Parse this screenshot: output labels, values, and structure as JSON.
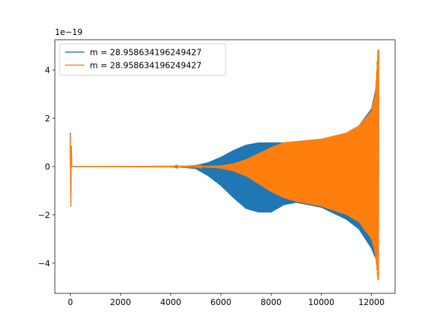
{
  "chart_data": {
    "type": "line",
    "title": "",
    "xlabel": "",
    "ylabel": "",
    "y_offset_label": "1e−19",
    "xlim": [
      -616,
      12941
    ],
    "ylim": [
      -5.25,
      5.25
    ],
    "x_ticks": [
      0,
      2000,
      4000,
      6000,
      8000,
      10000,
      12000
    ],
    "x_tick_labels": [
      "0",
      "2000",
      "4000",
      "6000",
      "8000",
      "10000",
      "12000"
    ],
    "y_ticks": [
      -4,
      -2,
      0,
      2,
      4
    ],
    "y_tick_labels": [
      "−4",
      "−2",
      "0",
      "2",
      "4"
    ],
    "grid": false,
    "legend_position": "upper-left",
    "series": [
      {
        "name": "m = 28.958634196249427",
        "color": "#1f77b4",
        "style": "oscillation",
        "spike_at_start": {
          "x": 0,
          "max": 1.4,
          "min": -1.65
        },
        "envelope": {
          "x": [
            0,
            4000,
            5000,
            5500,
            6000,
            6500,
            7000,
            7500,
            8000,
            8500,
            9000,
            10000,
            11000,
            11500,
            12000,
            12200,
            12290
          ],
          "upper": [
            0,
            0,
            0.06,
            0.18,
            0.4,
            0.68,
            0.9,
            1.0,
            1.0,
            1.0,
            1.05,
            1.15,
            1.4,
            1.7,
            2.4,
            3.4,
            3.5
          ],
          "lower": [
            0,
            0,
            -0.1,
            -0.4,
            -0.8,
            -1.3,
            -1.75,
            -1.9,
            -1.9,
            -1.6,
            -1.5,
            -1.7,
            -2.2,
            -2.6,
            -3.4,
            -3.9,
            -3.9
          ]
        }
      },
      {
        "name": "m = 28.958634196249427",
        "color": "#ff7f0e",
        "style": "oscillation",
        "spike_at_start": {
          "x": 0,
          "max": 1.3,
          "min": -1.6
        },
        "envelope": {
          "x": [
            0,
            5000,
            6000,
            6500,
            7000,
            7500,
            8000,
            8500,
            9000,
            10000,
            11000,
            11500,
            12000,
            12150,
            12250,
            12290
          ],
          "upper": [
            0,
            0.01,
            0.05,
            0.13,
            0.3,
            0.55,
            0.8,
            1.0,
            1.05,
            1.15,
            1.4,
            1.7,
            2.3,
            3.0,
            4.85,
            4.85
          ],
          "lower": [
            0,
            -0.01,
            -0.08,
            -0.2,
            -0.4,
            -0.72,
            -1.05,
            -1.3,
            -1.45,
            -1.65,
            -2.0,
            -2.3,
            -3.0,
            -3.6,
            -4.7,
            -4.7
          ]
        }
      }
    ]
  }
}
